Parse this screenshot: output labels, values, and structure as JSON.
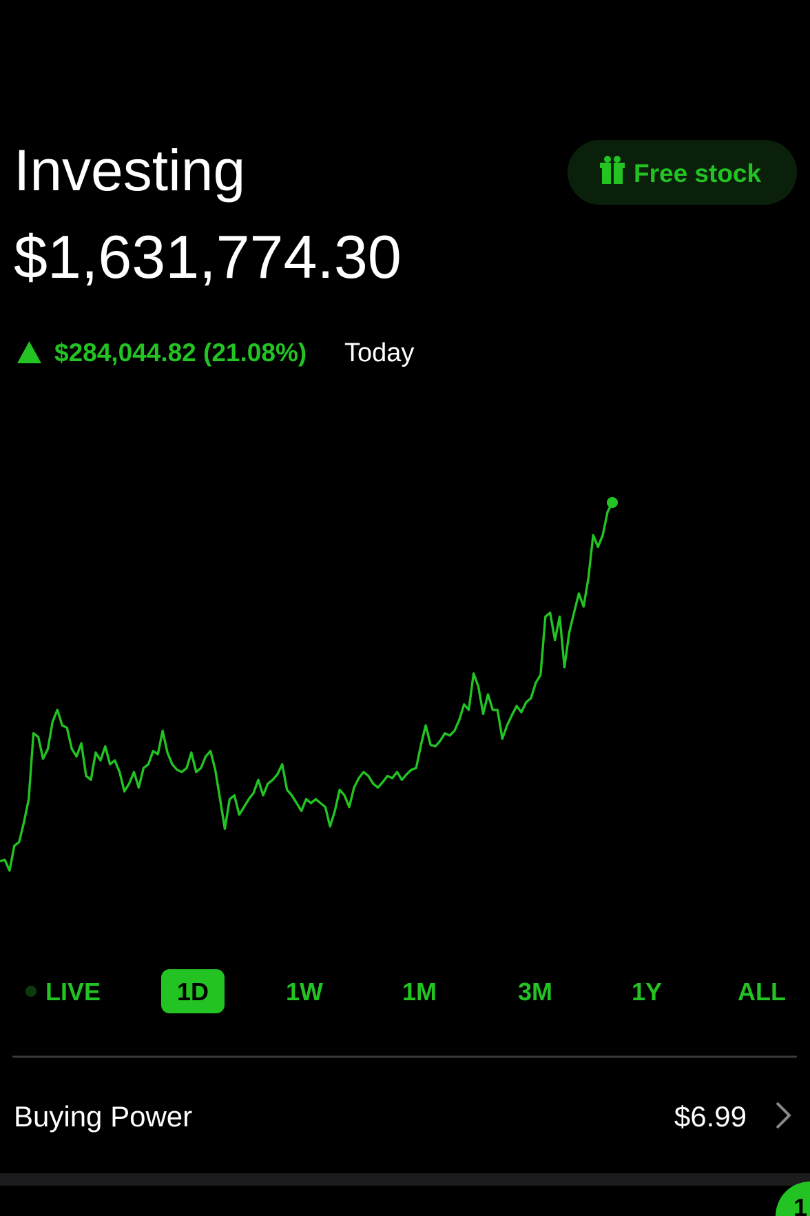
{
  "header": {
    "title": "Investing",
    "total": "$1,631,774.30",
    "change": "$284,044.82 (21.08%)",
    "change_period": "Today",
    "promo_button": "Free stock"
  },
  "chart_data": {
    "type": "line",
    "color": "#22c322",
    "values": [
      1347700,
      1348900,
      1340300,
      1360000,
      1363000,
      1378400,
      1396900,
      1449100,
      1446100,
      1428900,
      1436800,
      1458400,
      1467600,
      1455300,
      1453500,
      1436800,
      1430700,
      1441200,
      1415300,
      1412200,
      1433800,
      1427600,
      1438700,
      1424500,
      1427600,
      1418400,
      1403000,
      1409200,
      1418400,
      1406100,
      1421500,
      1424500,
      1435000,
      1432500,
      1451000,
      1433800,
      1424500,
      1420200,
      1418400,
      1421500,
      1433800,
      1418400,
      1421500,
      1430700,
      1435000,
      1420200,
      1396900,
      1373500,
      1396900,
      1399900,
      1384600,
      1390700,
      1396900,
      1401800,
      1412200,
      1399900,
      1409200,
      1412200,
      1416600,
      1424500,
      1404300,
      1399900,
      1393800,
      1387600,
      1396900,
      1393800,
      1396900,
      1393800,
      1390700,
      1375300,
      1387600,
      1404300,
      1399900,
      1390700,
      1406100,
      1413500,
      1418400,
      1415300,
      1409200,
      1406100,
      1410400,
      1415300,
      1413500,
      1418400,
      1412200,
      1416600,
      1420200,
      1421500,
      1439900,
      1455300,
      1439900,
      1438700,
      1443000,
      1449100,
      1447300,
      1451000,
      1459600,
      1471900,
      1467600,
      1496500,
      1486000,
      1464500,
      1479900,
      1467600,
      1467600,
      1444800,
      1455300,
      1463300,
      1470700,
      1465800,
      1473700,
      1476800,
      1489100,
      1495300,
      1541400,
      1544500,
      1522900,
      1541400,
      1501400,
      1529100,
      1544500,
      1559800,
      1549400,
      1572100,
      1606000,
      1596700,
      1606000,
      1624400,
      1631800
    ]
  },
  "periods": {
    "live": "LIVE",
    "items": [
      "1D",
      "1W",
      "1M",
      "3M",
      "1Y",
      "ALL"
    ],
    "selected": 0
  },
  "buying_power": {
    "label": "Buying Power",
    "value": "$6.99"
  },
  "badge": "1"
}
